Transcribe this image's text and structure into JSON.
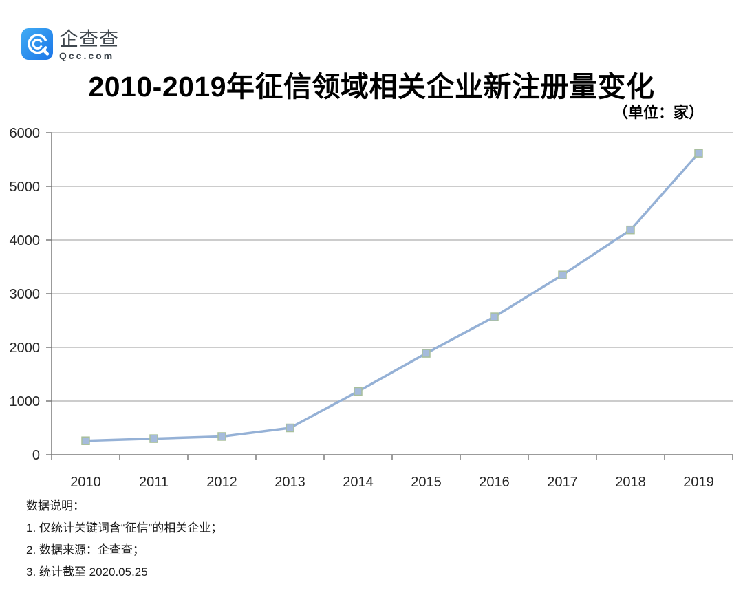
{
  "header": {
    "logo": {
      "brand_name": "企查查",
      "brand_domain": "Qcc.com",
      "icon": "qcc-magnifier-icon",
      "icon_gradient": [
        "#40ACF4",
        "#1B75E8"
      ],
      "text_color": "#3E464D"
    },
    "title": "2010-2019年征信领域相关企业新注册量变化",
    "unit_label": "（单位：家）"
  },
  "chart_data": {
    "type": "line",
    "title": "2010-2019年征信领域相关企业新注册量变化",
    "unit": "家",
    "categories": [
      "2010",
      "2011",
      "2012",
      "2013",
      "2014",
      "2015",
      "2016",
      "2017",
      "2018",
      "2019"
    ],
    "series": [
      {
        "name": "征信领域相关企业新注册量",
        "values": [
          260,
          300,
          340,
          500,
          1180,
          1890,
          2570,
          3350,
          4190,
          5620
        ]
      }
    ],
    "xlabel": "",
    "ylabel": "",
    "ylim": [
      0,
      6000
    ],
    "yticks": [
      0,
      1000,
      2000,
      3000,
      4000,
      5000,
      6000
    ],
    "grid": true,
    "legend": false,
    "marker": "square",
    "colors": {
      "line": "#95B1D6",
      "marker_fill": "#A5BBDC",
      "marker_stroke": "#A8BF9C",
      "grid": "#999999",
      "axis": "#7A7A7A",
      "tick_text": "#262626"
    }
  },
  "notes": {
    "heading": "数据说明：",
    "items": [
      "1. 仅统计关键词含“征信”的相关企业；",
      "2. 数据来源：企查查；",
      "3. 统计截至 2020.05.25"
    ]
  }
}
